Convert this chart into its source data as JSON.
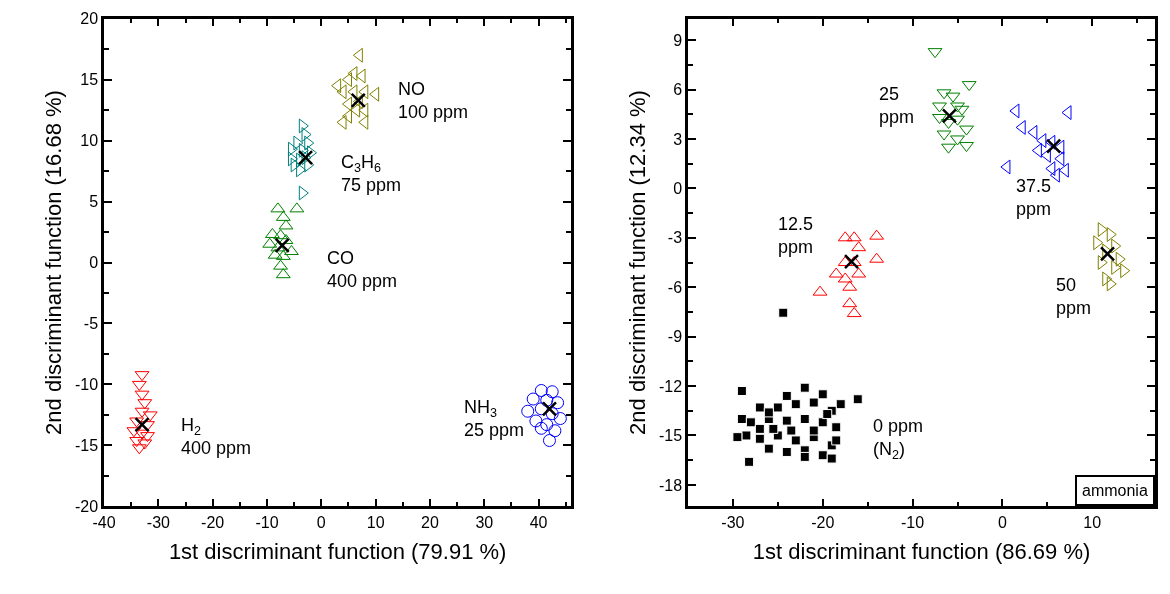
{
  "chart_data": [
    {
      "type": "scatter",
      "xlabel": "1st discriminant function (79.91 %)",
      "ylabel": "2nd discriminant function (16.68 %)",
      "xlim": [
        -40,
        46
      ],
      "ylim": [
        -20,
        20
      ],
      "xticks": [
        -40,
        {
          "value": -35,
          "label": null
        },
        -30,
        {
          "value": -25,
          "label": null
        },
        -20,
        {
          "value": -15,
          "label": null
        },
        -10,
        {
          "value": -5,
          "label": null
        },
        0,
        {
          "value": 5,
          "label": null
        },
        10,
        {
          "value": 15,
          "label": null
        },
        20,
        {
          "value": 25,
          "label": null
        },
        30,
        {
          "value": 35,
          "label": null
        },
        40,
        {
          "value": 45,
          "label": null
        }
      ],
      "yticks": [
        -20,
        {
          "value": -17.5,
          "label": null
        },
        -15,
        {
          "value": -12.5,
          "label": null
        },
        -10,
        {
          "value": -7.5,
          "label": null
        },
        -5,
        {
          "value": -2.5,
          "label": null
        },
        0,
        {
          "value": 2.5,
          "label": null
        },
        5,
        {
          "value": 7.5,
          "label": null
        },
        10,
        {
          "value": 12.5,
          "label": null
        },
        15,
        {
          "value": 17.5,
          "label": null
        },
        20
      ],
      "series": [
        {
          "color": "#808000",
          "marker": "triangle-left",
          "x": [
            7,
            6,
            5,
            7.5,
            3,
            4,
            6,
            8,
            10,
            5,
            7,
            6.5,
            5,
            8,
            4,
            8
          ],
          "values": [
            17,
            15.5,
            15,
            15.3,
            14.5,
            14,
            14,
            14,
            13.8,
            13,
            13.2,
            12.5,
            12,
            12.5,
            11.5,
            11.5
          ]
        },
        {
          "color": "#008080",
          "marker": "triangle-right",
          "x": [
            -3.5,
            -3,
            -4.5,
            -2.5,
            -5.5,
            -3.5,
            -2,
            -5.5,
            -4,
            -3,
            -5,
            -2.5,
            -4,
            -3.5
          ],
          "values": [
            11.2,
            10.5,
            9.8,
            9.8,
            9.3,
            9.2,
            9,
            8.5,
            8.4,
            8.6,
            8,
            8,
            7.6,
            5.7
          ]
        },
        {
          "color": "#008000",
          "marker": "triangle-up",
          "x": [
            -8,
            -7,
            -6.5,
            -4.5,
            -9,
            -7.5,
            -9.5,
            -8,
            -6.5,
            -8.5,
            -7,
            -5.5,
            -7.5,
            -7
          ],
          "values": [
            4.4,
            3.7,
            3,
            4.4,
            2.3,
            2.2,
            1.5,
            1.2,
            1.8,
            0.6,
            0.5,
            0.9,
            -0.3,
            -1
          ]
        },
        {
          "color": "#ff0000",
          "marker": "triangle-down",
          "x": [
            -33,
            -33.5,
            -33,
            -32.5,
            -33,
            -31.5,
            -34,
            -32,
            -34.5,
            -33,
            -32,
            -34,
            -33.5,
            -32.5
          ],
          "values": [
            -9.2,
            -10,
            -10.8,
            -11.5,
            -12.2,
            -12.5,
            -13,
            -13.3,
            -13.8,
            -14,
            -14.2,
            -14.6,
            -15.2,
            -14.8
          ]
        },
        {
          "color": "#0000ff",
          "marker": "circle",
          "x": [
            40.5,
            42.5,
            39,
            41.5,
            43.5,
            40.5,
            38,
            42.5,
            44,
            39.5,
            41.5,
            40.5,
            43,
            42
          ],
          "values": [
            -10.5,
            -10.6,
            -11.2,
            -11.3,
            -11.5,
            -12,
            -12.2,
            -12.4,
            -12.8,
            -13,
            -13.3,
            -13.6,
            -13.8,
            -14.6
          ]
        },
        {
          "color": "#000000",
          "marker": "cross",
          "x": [
            6.8,
            -2.9,
            -7.2,
            -33,
            42
          ],
          "values": [
            13.3,
            8.6,
            1.4,
            -13.3,
            -12
          ]
        }
      ],
      "annotations": [
        {
          "text": "NO\n100 ppm",
          "x": 6.8,
          "y": 13.3
        },
        {
          "text": "C$_{3}$H$_{6}$\n75 ppm",
          "x": -2.9,
          "y": 8.6
        },
        {
          "text": "CO\n400 ppm",
          "x": -7.2,
          "y": 1.4
        },
        {
          "text": "H$_{2}$\n400 ppm",
          "x": -33,
          "y": -13.3
        },
        {
          "text": "NH$_{3}$\n25 ppm",
          "x": 42,
          "y": -12
        }
      ]
    },
    {
      "type": "scatter",
      "xlabel": "1st discriminant function (86.69 %)",
      "ylabel": "2nd discriminant function (12.34 %)",
      "xlim": [
        -35,
        17
      ],
      "ylim": [
        -19.3,
        10.3
      ],
      "xticks": [
        -30,
        {
          "value": -25,
          "label": null
        },
        -20,
        {
          "value": -15,
          "label": null
        },
        -10,
        {
          "value": -5,
          "label": null
        },
        0,
        {
          "value": 5,
          "label": null
        },
        10,
        {
          "value": 15,
          "label": null
        }
      ],
      "yticks": [
        -18,
        {
          "value": -16.5,
          "label": null
        },
        -15,
        {
          "value": -13.5,
          "label": null
        },
        -12,
        {
          "value": -10.5,
          "label": null
        },
        -9,
        {
          "value": -7.5,
          "label": null
        },
        -6,
        {
          "value": -4.5,
          "label": null
        },
        -3,
        {
          "value": -1.5,
          "label": null
        },
        0,
        {
          "value": 1.5,
          "label": null
        },
        3,
        {
          "value": 4.5,
          "label": null
        },
        6,
        {
          "value": 7.5,
          "label": null
        },
        9
      ],
      "series": [
        {
          "color": "#000000",
          "marker": "square",
          "x": [
            -29,
            -18,
            -16.1,
            -22,
            -24,
            -20,
            -27,
            -25,
            -23,
            -21,
            -19,
            -29,
            -28,
            -26,
            -24,
            -22,
            -20,
            -18.5,
            -28.5,
            -27,
            -25,
            -23,
            -21,
            -19,
            -29.5,
            -26,
            -24,
            -22,
            -20,
            -19,
            -28.2,
            -22,
            -24.4,
            -25.5,
            -23.5,
            -27,
            -21,
            -19.5,
            -18.5,
            -26
          ],
          "values": [
            -12.3,
            -13.1,
            -12.8,
            -12.1,
            -12.6,
            -12.5,
            -13.3,
            -13.3,
            -13.1,
            -13,
            -13.5,
            -14,
            -14.2,
            -14,
            -14.1,
            -14,
            -14.2,
            -14.5,
            -15,
            -15.2,
            -15,
            -15.3,
            -15.1,
            -15.6,
            -15.1,
            -15.8,
            -16,
            -15.9,
            -16.2,
            -16.4,
            -16.6,
            -16.3,
            -7.55,
            -14.6,
            -14.7,
            -14.6,
            -14.7,
            -13.7,
            -15.3,
            -13.6
          ]
        },
        {
          "color": "#ff0000",
          "marker": "triangle-up",
          "x": [
            -17.5,
            -16.5,
            -14,
            -16,
            -17.5,
            -16.5,
            -14,
            -18.5,
            -17.5,
            -16,
            -17,
            -20.3,
            -17,
            -16.5
          ],
          "values": [
            -3,
            -3,
            -2.9,
            -3.6,
            -4.5,
            -4.5,
            -4.3,
            -5.2,
            -5.5,
            -5.2,
            -6,
            -6.3,
            -7,
            -7.6
          ]
        },
        {
          "color": "#008000",
          "marker": "triangle-down",
          "x": [
            -7.5,
            -3.7,
            -6.5,
            -5.5,
            -7,
            -5,
            -4.5,
            -7,
            -6,
            -5,
            -4,
            -6.5,
            -5,
            -4,
            -6
          ],
          "values": [
            8.3,
            6.3,
            5.8,
            5.6,
            5,
            5,
            4.8,
            4.3,
            4,
            4.2,
            3.6,
            3.3,
            3,
            2.6,
            2.5
          ]
        },
        {
          "color": "#0000ff",
          "marker": "triangle-left",
          "x": [
            1.5,
            7.3,
            2.2,
            3.5,
            4.5,
            5.5,
            6.5,
            4,
            5,
            6.5,
            0.5,
            5.5,
            7,
            6
          ],
          "values": [
            4.7,
            4.6,
            3.7,
            3.4,
            2.9,
            2.8,
            2.5,
            2.3,
            2,
            1.8,
            1.3,
            1.2,
            1.1,
            0.8
          ]
        },
        {
          "color": "#808000",
          "marker": "triangle-right",
          "x": [
            11,
            12,
            10.5,
            12.5,
            11.5,
            13,
            11,
            13.5,
            11.5,
            12,
            12.5
          ],
          "values": [
            -2.5,
            -2.8,
            -3.3,
            -3.5,
            -3.8,
            -4.3,
            -4.5,
            -5,
            -5.5,
            -5.8,
            -4.8
          ]
        },
        {
          "color": "#000000",
          "marker": "cross",
          "x": [
            -16.8,
            -5.9,
            5.7,
            11.7
          ],
          "values": [
            -4.45,
            4.4,
            2.57,
            -3.97
          ]
        }
      ],
      "annotations": [
        {
          "text": "25\nppm",
          "x": -5.9,
          "y": 4.4
        },
        {
          "text": "12.5\nppm",
          "x": -16.8,
          "y": -4.45
        },
        {
          "text": "37.5\nppm",
          "x": 5.7,
          "y": 2.57
        },
        {
          "text": "50\nppm",
          "x": 11.7,
          "y": -3.97
        },
        {
          "text": "0 ppm\n(N$_{2}$)",
          "x": -16.1,
          "y": -12.8
        },
        "ammonia"
      ]
    }
  ]
}
